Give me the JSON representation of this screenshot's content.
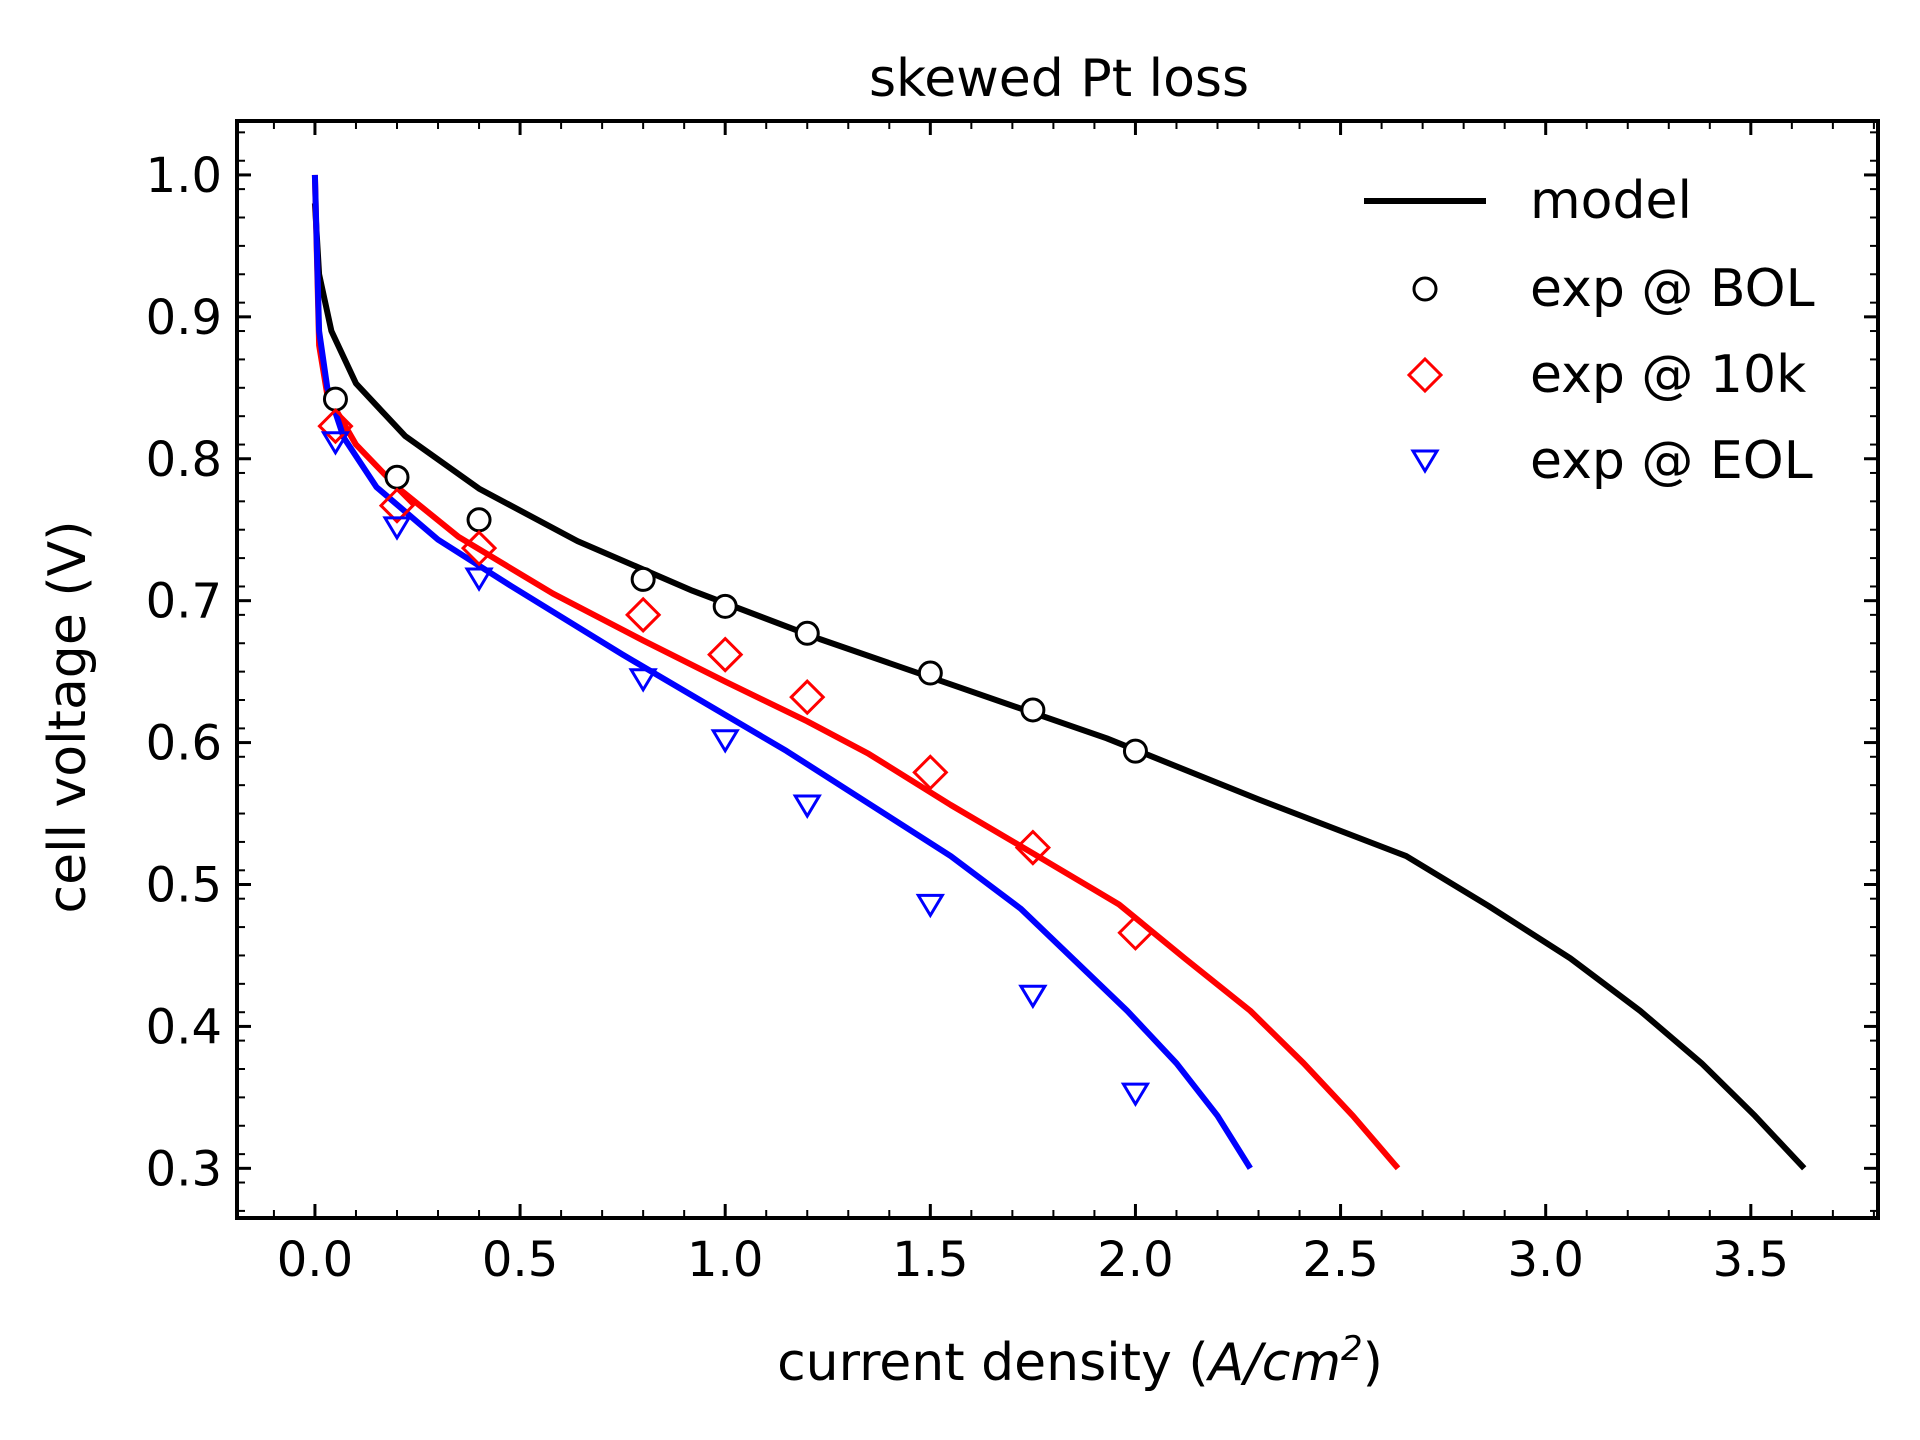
{
  "chart_data": {
    "type": "line",
    "title": "skewed Pt loss",
    "xlabel": "current density (",
    "xlabel_math": "A/cm",
    "xlabel_sup": "2",
    "xlabel_close": ")",
    "ylabel": "cell voltage (V)",
    "xlim": [
      -0.19,
      3.81
    ],
    "ylim": [
      0.265,
      1.038
    ],
    "x_ticks": [
      0.0,
      0.5,
      1.0,
      1.5,
      2.0,
      2.5,
      3.0,
      3.5
    ],
    "x_tick_labels": [
      "0.0",
      "0.5",
      "1.0",
      "1.5",
      "2.0",
      "2.5",
      "3.0",
      "3.5"
    ],
    "y_ticks": [
      0.3,
      0.4,
      0.5,
      0.6,
      0.7,
      0.8,
      0.9,
      1.0
    ],
    "y_tick_labels": [
      "0.3",
      "0.4",
      "0.5",
      "0.6",
      "0.7",
      "0.8",
      "0.9",
      "1.0"
    ],
    "legend_position": "top-right",
    "legend": [
      "model",
      "exp @ BOL",
      "exp @ 10k",
      "exp @ EOL"
    ],
    "colors": {
      "bol": "#000000",
      "k10": "#ff0000",
      "eol": "#0000ff"
    },
    "model_series": [
      {
        "name": "model BOL",
        "color": "#000000",
        "x": [
          0.0,
          0.01,
          0.04,
          0.1,
          0.22,
          0.4,
          0.64,
          0.92,
          1.23,
          1.57,
          1.93,
          2.3,
          2.66,
          2.86,
          3.06,
          3.23,
          3.38,
          3.51,
          3.63
        ],
        "y": [
          0.98,
          0.93,
          0.89,
          0.853,
          0.816,
          0.779,
          0.742,
          0.707,
          0.673,
          0.639,
          0.603,
          0.56,
          0.52,
          0.485,
          0.448,
          0.411,
          0.374,
          0.337,
          0.3
        ]
      },
      {
        "name": "model 10k",
        "color": "#ff0000",
        "x": [
          0.0,
          0.01,
          0.03,
          0.1,
          0.2,
          0.35,
          0.58,
          0.8,
          1.0,
          1.2,
          1.35,
          1.55,
          1.75,
          1.96,
          2.12,
          2.28,
          2.41,
          2.53,
          2.64
        ],
        "y": [
          1.0,
          0.88,
          0.845,
          0.81,
          0.78,
          0.745,
          0.705,
          0.672,
          0.643,
          0.615,
          0.592,
          0.556,
          0.522,
          0.486,
          0.448,
          0.411,
          0.374,
          0.337,
          0.3
        ],
        "x_max": 2.64
      },
      {
        "name": "model EOL",
        "color": "#0000ff",
        "x": [
          0.0,
          0.01,
          0.03,
          0.07,
          0.15,
          0.3,
          0.48,
          0.75,
          1.15,
          1.35,
          1.55,
          1.72,
          1.85,
          1.98,
          2.1,
          2.2,
          2.28
        ],
        "y": [
          1.0,
          0.89,
          0.85,
          0.815,
          0.78,
          0.743,
          0.71,
          0.662,
          0.594,
          0.557,
          0.52,
          0.483,
          0.447,
          0.411,
          0.374,
          0.337,
          0.3
        ]
      }
    ],
    "experiment_series": [
      {
        "name": "exp @ BOL",
        "marker": "circle",
        "color": "#000000",
        "x": [
          0.05,
          0.2,
          0.4,
          0.8,
          1.0,
          1.2,
          1.5,
          1.75,
          2.0
        ],
        "y": [
          0.842,
          0.787,
          0.757,
          0.715,
          0.696,
          0.677,
          0.649,
          0.623,
          0.594
        ]
      },
      {
        "name": "exp @ 10k",
        "marker": "diamond",
        "color": "#ff0000",
        "x": [
          0.05,
          0.2,
          0.4,
          0.8,
          1.0,
          1.2,
          1.5,
          1.75,
          2.0
        ],
        "y": [
          0.823,
          0.767,
          0.737,
          0.69,
          0.662,
          0.632,
          0.579,
          0.526,
          0.466
        ]
      },
      {
        "name": "exp @ EOL",
        "marker": "triangle-down",
        "color": "#0000ff",
        "x": [
          0.05,
          0.2,
          0.4,
          0.8,
          1.0,
          1.2,
          1.5,
          1.75,
          2.0
        ],
        "y": [
          0.812,
          0.752,
          0.716,
          0.645,
          0.602,
          0.556,
          0.486,
          0.422,
          0.353
        ]
      }
    ]
  }
}
